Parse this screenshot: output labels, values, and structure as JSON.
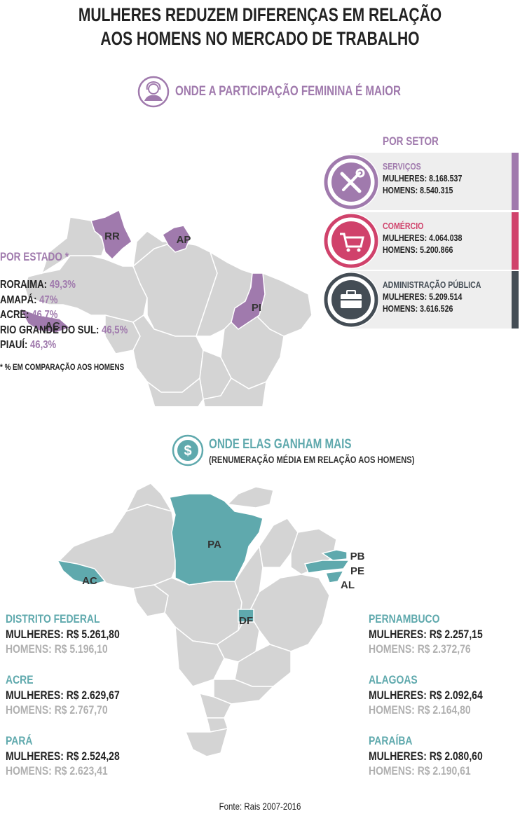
{
  "title_line1": "MULHERES REDUZEM DIFERENÇAS EM RELAÇÃO",
  "title_line2": "AOS HOMENS NO MERCADO DE TRABALHO",
  "section1": {
    "heading": "ONDE A PARTICIPAÇÃO FEMININA É MAIOR",
    "map_labels": {
      "rr": "RR",
      "ap": "AP",
      "pi": "PI",
      "ac": "AC",
      "rs": "RS"
    },
    "by_state_title": "POR ESTADO *",
    "states": [
      {
        "name": "RORAIMA:",
        "value": "49,3%"
      },
      {
        "name": "AMAPÁ:",
        "value": "47%"
      },
      {
        "name": "ACRE:",
        "value": "46,7%"
      },
      {
        "name": "RIO GRANDE DO SUL:",
        "value": "46,5%"
      },
      {
        "name": "PIAUÍ:",
        "value": "46,3%"
      }
    ],
    "note": "* % EM COMPARAÇÃO AOS HOMENS",
    "by_sector_title": "POR SETOR",
    "sectors": [
      {
        "name": "SERVIÇOS",
        "women": "MULHERES: 8.168.537",
        "men": "HOMENS: 8.540.315",
        "color": "#a07aad",
        "icon": "tools-icon"
      },
      {
        "name": "COMÉRCIO",
        "women": "MULHERES: 4.064.038",
        "men": "HOMENS: 5.200.866",
        "color": "#d0426b",
        "icon": "cart-icon"
      },
      {
        "name": "ADMINISTRAÇÃO PÚBLICA",
        "women": "MULHERES: 5.209.514",
        "men": "HOMENS: 3.616.526",
        "color": "#444d55",
        "icon": "briefcase-icon"
      }
    ]
  },
  "section2": {
    "heading": "ONDE ELAS GANHAM MAIS",
    "subheading": "(RENUMERAÇÃO MÉDIA EM RELAÇÃO AOS HOMENS)",
    "map_labels": {
      "pa": "PA",
      "ac": "AC",
      "df": "DF",
      "pb": "PB",
      "pe": "PE",
      "al": "AL"
    },
    "left": [
      {
        "state": "DISTRITO FEDERAL",
        "women": "MULHERES: R$ 5.261,80",
        "men": "HOMENS: R$ 5.196,10"
      },
      {
        "state": "ACRE",
        "women": "MULHERES: R$ 2.629,67",
        "men": "HOMENS: R$ 2.767,70"
      },
      {
        "state": "PARÁ",
        "women": "MULHERES: R$ 2.524,28",
        "men": "HOMENS: R$  2.623,41"
      }
    ],
    "right": [
      {
        "state": "PERNAMBUCO",
        "women": "MULHERES: R$ 2.257,15",
        "men": "HOMENS: R$ 2.372,76"
      },
      {
        "state": "ALAGOAS",
        "women": "MULHERES: R$ 2.092,64",
        "men": "HOMENS: R$ 2.164,80"
      },
      {
        "state": "PARAÍBA",
        "women": "MULHERES: R$ 2.080,60",
        "men": "HOMENS: R$ 2.190,61"
      }
    ]
  },
  "source": "Fonte: Rais 2007-2016",
  "colors": {
    "purple": "#a07aad",
    "teal": "#5fa9ad",
    "map_gray": "#d4d4d4",
    "magenta": "#d0426b",
    "dark": "#444d55"
  }
}
